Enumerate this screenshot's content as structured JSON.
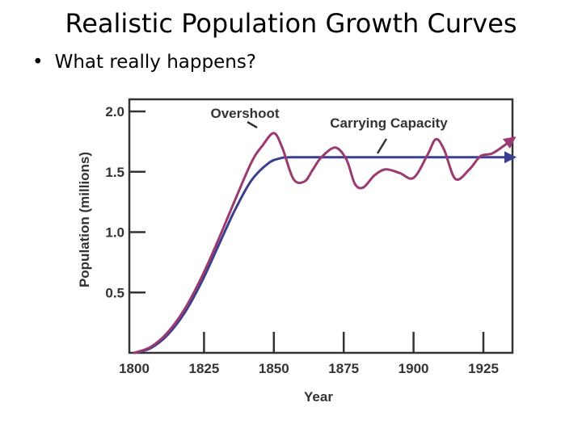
{
  "slide": {
    "title": "Realistic Population Growth Curves",
    "bullet": "What really happens?"
  },
  "chart_data": {
    "type": "line",
    "title": "",
    "xlabel": "Year",
    "ylabel": "Population (millions)",
    "xlim": [
      1800,
      1937
    ],
    "ylim": [
      0,
      2.1
    ],
    "x_ticks": [
      1800,
      1825,
      1850,
      1875,
      1900,
      1925
    ],
    "x_tick_labels": [
      "1800",
      "1825",
      "1850",
      "1875",
      "1900",
      "1925"
    ],
    "y_ticks": [
      0.5,
      1.0,
      1.5,
      2.0
    ],
    "y_tick_labels": [
      "0.5",
      "1.0",
      "1.5",
      "2.0"
    ],
    "grid": false,
    "annotations": [
      {
        "text": "Overshoot",
        "x": 1851,
        "y": 1.85
      },
      {
        "text": "Carrying Capacity",
        "x": 1883,
        "y": 1.75
      }
    ],
    "series": [
      {
        "name": "Carrying Capacity",
        "color": "#3a3f8f",
        "x": [
          1800,
          1806,
          1812,
          1818,
          1824,
          1830,
          1836,
          1842,
          1848,
          1852,
          1856,
          1870,
          1890,
          1910,
          1936
        ],
        "y": [
          0.0,
          0.04,
          0.15,
          0.33,
          0.58,
          0.88,
          1.18,
          1.43,
          1.57,
          1.61,
          1.62,
          1.62,
          1.62,
          1.62,
          1.62
        ]
      },
      {
        "name": "Overshoot",
        "color": "#9b3a6f",
        "x": [
          1800,
          1806,
          1812,
          1818,
          1824,
          1830,
          1836,
          1842,
          1846,
          1850,
          1853,
          1857,
          1861,
          1864,
          1867,
          1872,
          1876,
          1879,
          1882,
          1886,
          1890,
          1895,
          1900,
          1905,
          1908,
          1911,
          1915,
          1920,
          1924,
          1928,
          1932,
          1936
        ],
        "y": [
          0.0,
          0.05,
          0.17,
          0.36,
          0.62,
          0.93,
          1.26,
          1.58,
          1.72,
          1.82,
          1.7,
          1.44,
          1.42,
          1.52,
          1.62,
          1.7,
          1.6,
          1.4,
          1.37,
          1.47,
          1.52,
          1.49,
          1.45,
          1.64,
          1.77,
          1.68,
          1.44,
          1.52,
          1.63,
          1.65,
          1.71,
          1.78
        ]
      }
    ]
  }
}
